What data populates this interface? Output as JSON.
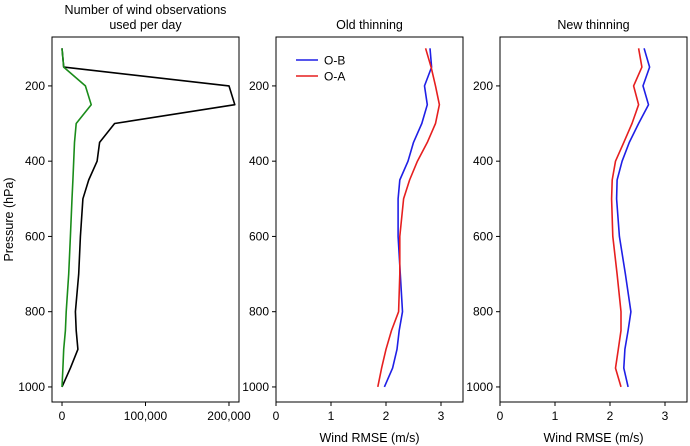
{
  "chart_data": [
    {
      "type": "line",
      "title": [
        "Number of wind observations",
        "used per day"
      ],
      "xlabel": "",
      "ylabel": "Pressure (hPa)",
      "xlim": [
        -12000,
        212000
      ],
      "ylim": [
        1040,
        70
      ],
      "y_inverted": true,
      "xticks": [
        0,
        100000,
        200000
      ],
      "xtick_labels": [
        "0",
        "100,000",
        "200,000"
      ],
      "yticks": [
        200,
        400,
        600,
        800,
        1000
      ],
      "ytick_labels": [
        "200",
        "400",
        "600",
        "800",
        "1000"
      ],
      "grid": false,
      "series": [
        {
          "color": "#000000",
          "points": [
            [
              0,
              100
            ],
            [
              2000,
              150
            ],
            [
              200000,
              200
            ],
            [
              207000,
              250
            ],
            [
              63000,
              300
            ],
            [
              45000,
              350
            ],
            [
              42000,
              400
            ],
            [
              32000,
              450
            ],
            [
              25000,
              500
            ],
            [
              22000,
              600
            ],
            [
              20000,
              700
            ],
            [
              16000,
              800
            ],
            [
              17000,
              850
            ],
            [
              19000,
              900
            ],
            [
              10000,
              950
            ],
            [
              0,
              1000
            ]
          ]
        },
        {
          "color": "#1a8c1a",
          "points": [
            [
              0,
              100
            ],
            [
              2000,
              150
            ],
            [
              28000,
              200
            ],
            [
              35000,
              250
            ],
            [
              17000,
              300
            ],
            [
              15000,
              350
            ],
            [
              14000,
              400
            ],
            [
              13000,
              450
            ],
            [
              12000,
              500
            ],
            [
              10000,
              600
            ],
            [
              8000,
              700
            ],
            [
              5000,
              800
            ],
            [
              4000,
              850
            ],
            [
              2000,
              900
            ],
            [
              1000,
              950
            ],
            [
              0,
              1000
            ]
          ]
        }
      ]
    },
    {
      "type": "line",
      "title": "Old thinning",
      "xlabel": "Wind RMSE (m/s)",
      "ylabel": "",
      "xlim": [
        0,
        3.4
      ],
      "ylim": [
        1040,
        70
      ],
      "y_inverted": true,
      "xticks": [
        0,
        1,
        2,
        3
      ],
      "xtick_labels": [
        "0",
        "1",
        "2",
        "3"
      ],
      "yticks": [
        200,
        400,
        600,
        800,
        1000
      ],
      "ytick_labels": [
        "200",
        "400",
        "600",
        "800",
        "1000"
      ],
      "grid": false,
      "legend": {
        "position": "top-left",
        "entries": [
          {
            "label": "O-B",
            "color": "#1f1fe6"
          },
          {
            "label": "O-A",
            "color": "#e61f1f"
          }
        ]
      },
      "series": [
        {
          "name": "O-B",
          "color": "#1f1fe6",
          "points": [
            [
              2.8,
              100
            ],
            [
              2.83,
              150
            ],
            [
              2.7,
              200
            ],
            [
              2.75,
              250
            ],
            [
              2.65,
              300
            ],
            [
              2.5,
              350
            ],
            [
              2.4,
              400
            ],
            [
              2.25,
              450
            ],
            [
              2.22,
              500
            ],
            [
              2.22,
              600
            ],
            [
              2.26,
              700
            ],
            [
              2.3,
              800
            ],
            [
              2.24,
              850
            ],
            [
              2.2,
              900
            ],
            [
              2.12,
              950
            ],
            [
              1.97,
              1000
            ]
          ]
        },
        {
          "name": "O-A",
          "color": "#e61f1f",
          "points": [
            [
              2.72,
              100
            ],
            [
              2.82,
              150
            ],
            [
              2.9,
              200
            ],
            [
              2.97,
              250
            ],
            [
              2.9,
              300
            ],
            [
              2.75,
              350
            ],
            [
              2.57,
              400
            ],
            [
              2.43,
              450
            ],
            [
              2.32,
              500
            ],
            [
              2.25,
              600
            ],
            [
              2.25,
              700
            ],
            [
              2.23,
              800
            ],
            [
              2.1,
              850
            ],
            [
              2.0,
              900
            ],
            [
              1.92,
              950
            ],
            [
              1.85,
              1000
            ]
          ]
        }
      ]
    },
    {
      "type": "line",
      "title": "New thinning",
      "xlabel": "Wind RMSE (m/s)",
      "ylabel": "",
      "xlim": [
        0,
        3.4
      ],
      "ylim": [
        1040,
        70
      ],
      "y_inverted": true,
      "xticks": [
        0,
        1,
        2,
        3
      ],
      "xtick_labels": [
        "0",
        "1",
        "2",
        "3"
      ],
      "yticks": [
        200,
        400,
        600,
        800,
        1000
      ],
      "ytick_labels": [
        "200",
        "400",
        "600",
        "800",
        "1000"
      ],
      "grid": false,
      "series": [
        {
          "name": "O-B",
          "color": "#1f1fe6",
          "points": [
            [
              2.62,
              100
            ],
            [
              2.72,
              150
            ],
            [
              2.6,
              200
            ],
            [
              2.7,
              250
            ],
            [
              2.52,
              300
            ],
            [
              2.35,
              350
            ],
            [
              2.22,
              400
            ],
            [
              2.13,
              450
            ],
            [
              2.12,
              500
            ],
            [
              2.17,
              600
            ],
            [
              2.28,
              700
            ],
            [
              2.38,
              800
            ],
            [
              2.33,
              850
            ],
            [
              2.27,
              900
            ],
            [
              2.25,
              950
            ],
            [
              2.33,
              1000
            ]
          ]
        },
        {
          "name": "O-A",
          "color": "#e61f1f",
          "points": [
            [
              2.52,
              100
            ],
            [
              2.58,
              150
            ],
            [
              2.43,
              200
            ],
            [
              2.52,
              250
            ],
            [
              2.4,
              300
            ],
            [
              2.25,
              350
            ],
            [
              2.1,
              400
            ],
            [
              2.04,
              450
            ],
            [
              2.03,
              500
            ],
            [
              2.05,
              600
            ],
            [
              2.13,
              700
            ],
            [
              2.2,
              800
            ],
            [
              2.2,
              850
            ],
            [
              2.15,
              900
            ],
            [
              2.1,
              950
            ],
            [
              2.2,
              1000
            ]
          ]
        }
      ]
    }
  ]
}
